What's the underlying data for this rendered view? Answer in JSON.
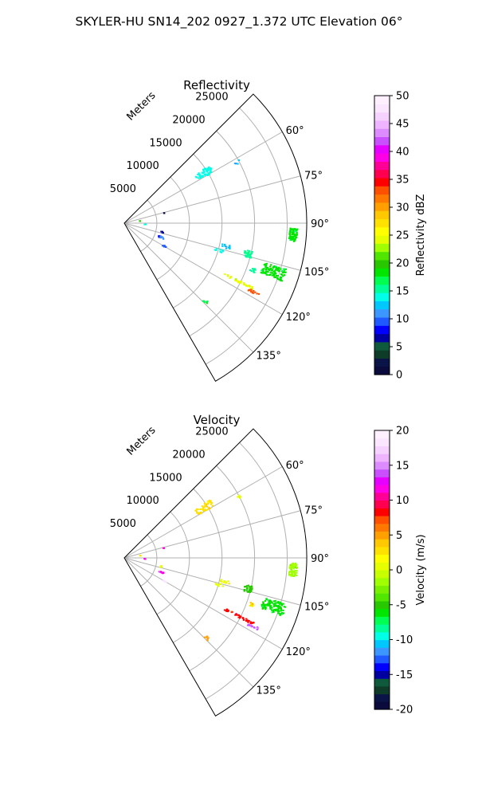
{
  "figure": {
    "title": "SKYLER-HU  SN14_202  0927_1.372 UTC Elevation 06°"
  },
  "chart_data": [
    {
      "type": "polar-sector",
      "title": "Reflectivity",
      "range_label": "Meters",
      "range_ticks": [
        5000,
        10000,
        15000,
        20000,
        25000
      ],
      "range_max": 28000,
      "azimuth_range": [
        45,
        150
      ],
      "azimuth_ticks": [
        "60°",
        "75°",
        "90°",
        "105°",
        "120°",
        "135°"
      ],
      "grid": true,
      "colorbar": {
        "label": "Reflectivity dBZ",
        "min": 0,
        "max": 50,
        "ticks": [
          "0",
          "5",
          "10",
          "15",
          "20",
          "25",
          "30",
          "35",
          "40",
          "45",
          "50"
        ],
        "colors": [
          "#0a0a3c",
          "#0a1446",
          "#0f3c28",
          "#0f5a3c",
          "#0000a0",
          "#0000ff",
          "#1e5aff",
          "#3c96ff",
          "#00c8ff",
          "#00ffe6",
          "#00ff96",
          "#00ff50",
          "#00e600",
          "#28c800",
          "#50e600",
          "#a0ff00",
          "#e6ff00",
          "#ffff00",
          "#ffe100",
          "#ffc800",
          "#ffa000",
          "#ff7800",
          "#ff5000",
          "#ff0000",
          "#ff0050",
          "#ff0096",
          "#ff00e6",
          "#e600ff",
          "#c850ff",
          "#dc8cff",
          "#eeb4ff",
          "#f5d2ff",
          "#fae6ff",
          "#fff0ff"
        ]
      },
      "echoes": [
        {
          "az": 58,
          "r": 14500,
          "dr": 1400,
          "daz": 2.2,
          "value": 14,
          "n": 50
        },
        {
          "az": 62,
          "r": 19800,
          "dr": 500,
          "daz": 1.0,
          "value": 13,
          "n": 5
        },
        {
          "az": 76,
          "r": 6200,
          "dr": 150,
          "daz": 0.5,
          "value": 1,
          "n": 2
        },
        {
          "az": 93,
          "r": 3200,
          "dr": 120,
          "daz": 0.5,
          "value": 14,
          "n": 2
        },
        {
          "az": 94,
          "r": 26000,
          "dr": 600,
          "daz": 2.2,
          "value": 18,
          "n": 70
        },
        {
          "az": 104,
          "r": 19600,
          "dr": 600,
          "daz": 1.5,
          "value": 16,
          "n": 30
        },
        {
          "az": 103,
          "r": 16000,
          "dr": 800,
          "daz": 1.0,
          "value": 12,
          "n": 12
        },
        {
          "az": 106,
          "r": 15200,
          "dr": 700,
          "daz": 0.8,
          "value": 14,
          "n": 10
        },
        {
          "az": 108,
          "r": 24100,
          "dr": 1800,
          "daz": 2.2,
          "value": 18,
          "n": 110
        },
        {
          "az": 110,
          "r": 21000,
          "dr": 400,
          "daz": 0.8,
          "value": 15,
          "n": 10
        },
        {
          "az": 117,
          "r": 19800,
          "dr": 2500,
          "daz": 0.5,
          "value": 24,
          "n": 40
        },
        {
          "az": 118,
          "r": 22500,
          "dr": 900,
          "daz": 0.6,
          "value": 33,
          "n": 14
        },
        {
          "az": 103,
          "r": 6000,
          "dr": 250,
          "daz": 1.0,
          "value": 7,
          "n": 4
        },
        {
          "az": 111,
          "r": 5900,
          "dr": 300,
          "daz": 1.0,
          "value": 8,
          "n": 7
        },
        {
          "az": 111,
          "r": 6200,
          "dr": 300,
          "daz": 1.0,
          "value": 11,
          "n": 6
        },
        {
          "az": 120,
          "r": 7000,
          "dr": 400,
          "daz": 0.8,
          "value": 10,
          "n": 6
        },
        {
          "az": 134,
          "r": 17500,
          "dr": 500,
          "daz": 0.8,
          "value": 17,
          "n": 6
        },
        {
          "az": 82,
          "r": 2500,
          "dr": 100,
          "daz": 0.5,
          "value": 20,
          "n": 2
        }
      ]
    },
    {
      "type": "polar-sector",
      "title": "Velocity",
      "range_label": "Meters",
      "range_ticks": [
        5000,
        10000,
        15000,
        20000,
        25000
      ],
      "range_max": 28000,
      "azimuth_range": [
        45,
        150
      ],
      "azimuth_ticks": [
        "60°",
        "75°",
        "90°",
        "105°",
        "120°",
        "135°"
      ],
      "grid": true,
      "colorbar": {
        "label": "Velocity (m/s)",
        "min": -20,
        "max": 20,
        "ticks": [
          "-20",
          "-15",
          "-10",
          "-5",
          "0",
          "5",
          "10",
          "15",
          "20"
        ],
        "colors": [
          "#0a0a3c",
          "#0a1446",
          "#0f3c28",
          "#0f5a3c",
          "#0000a0",
          "#0000ff",
          "#1e5aff",
          "#3c96ff",
          "#00c8ff",
          "#00ffe6",
          "#00ff96",
          "#00ff50",
          "#00e600",
          "#28c800",
          "#50e600",
          "#78f000",
          "#a0ff00",
          "#c8ff00",
          "#e6ff00",
          "#ffff00",
          "#ffe100",
          "#ffc800",
          "#ffa000",
          "#ff7800",
          "#ff5000",
          "#ff0000",
          "#ff0050",
          "#ff0096",
          "#ff00e6",
          "#e600ff",
          "#c850ff",
          "#dc8cff",
          "#eeb4ff",
          "#f5d2ff",
          "#fae6ff",
          "#fff0ff"
        ]
      },
      "echoes": [
        {
          "az": 58,
          "r": 14500,
          "dr": 1400,
          "daz": 2.2,
          "value": 3,
          "n": 50
        },
        {
          "az": 62,
          "r": 19800,
          "dr": 500,
          "daz": 1.0,
          "value": 0,
          "n": 5
        },
        {
          "az": 76,
          "r": 6200,
          "dr": 150,
          "daz": 0.5,
          "value": 12,
          "n": 2
        },
        {
          "az": 93,
          "r": 3200,
          "dr": 120,
          "daz": 0.5,
          "value": 12,
          "n": 2
        },
        {
          "az": 94,
          "r": 26000,
          "dr": 600,
          "daz": 2.2,
          "value": -2,
          "n": 70
        },
        {
          "az": 104,
          "r": 19600,
          "dr": 600,
          "daz": 1.5,
          "value": -5,
          "n": 30
        },
        {
          "az": 103,
          "r": 16000,
          "dr": 800,
          "daz": 1.0,
          "value": 1,
          "n": 12
        },
        {
          "az": 106,
          "r": 15200,
          "dr": 700,
          "daz": 0.8,
          "value": 1,
          "n": 10
        },
        {
          "az": 108,
          "r": 24100,
          "dr": 1800,
          "daz": 2.2,
          "value": -6,
          "n": 110
        },
        {
          "az": 110,
          "r": 21000,
          "dr": 400,
          "daz": 0.8,
          "value": 3,
          "n": 10
        },
        {
          "az": 117,
          "r": 19800,
          "dr": 2500,
          "daz": 0.5,
          "value": 8,
          "n": 40
        },
        {
          "az": 118,
          "r": 22500,
          "dr": 900,
          "daz": 0.6,
          "value": 14,
          "n": 14
        },
        {
          "az": 103,
          "r": 6000,
          "dr": 250,
          "daz": 1.0,
          "value": 0,
          "n": 4
        },
        {
          "az": 111,
          "r": 5900,
          "dr": 300,
          "daz": 1.0,
          "value": 15,
          "n": 7
        },
        {
          "az": 111,
          "r": 6200,
          "dr": 300,
          "daz": 1.0,
          "value": 12,
          "n": 6
        },
        {
          "az": 120,
          "r": 7000,
          "dr": 400,
          "daz": 0.8,
          "value": 18,
          "n": 6
        },
        {
          "az": 134,
          "r": 17500,
          "dr": 500,
          "daz": 0.8,
          "value": 5,
          "n": 6
        },
        {
          "az": 82,
          "r": 2500,
          "dr": 100,
          "daz": 0.5,
          "value": 2,
          "n": 2
        }
      ]
    }
  ]
}
